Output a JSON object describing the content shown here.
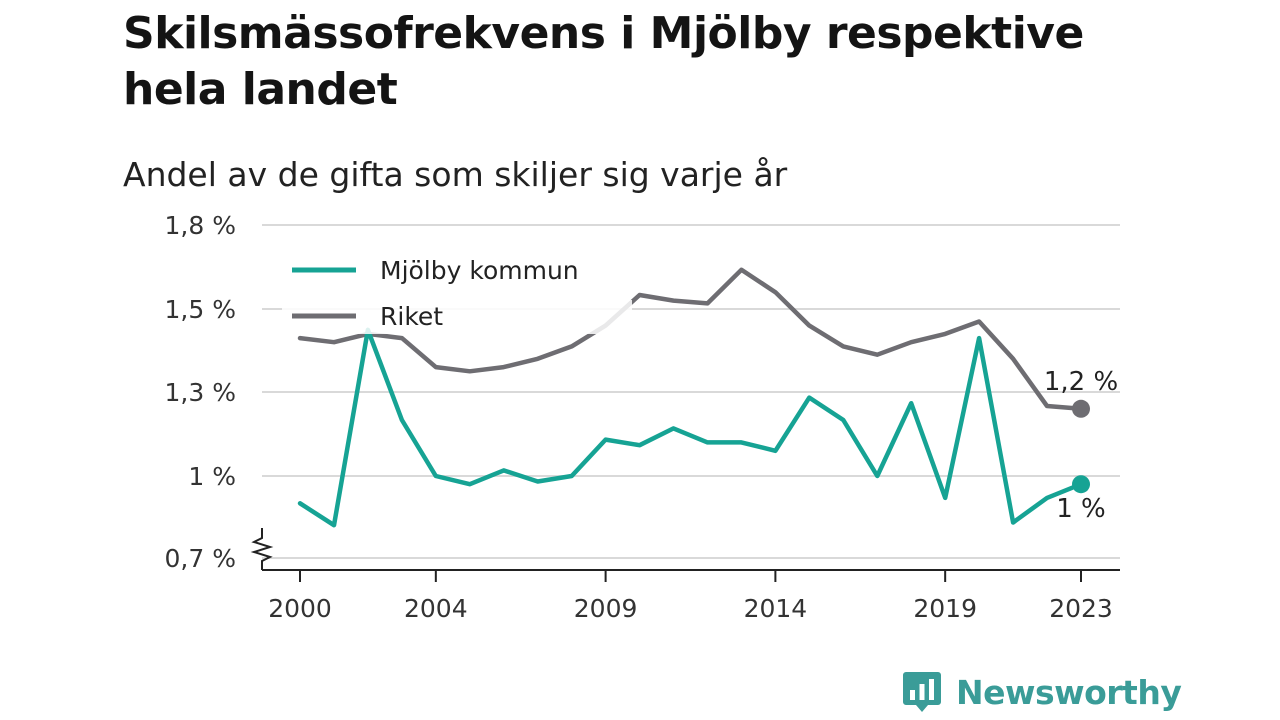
{
  "title": "Skilsmässofrekvens i Mjölby respektive hela landet",
  "subtitle": "Andel av de gifta som skiljer sig varje år",
  "brand": {
    "name": "Newsworthy",
    "color": "#3a9c98",
    "icon": "chart-bubble-icon"
  },
  "chart_data": {
    "type": "line",
    "ylim": [
      0.7,
      1.8
    ],
    "y_ticks": [
      0.7,
      1.0,
      1.3,
      1.5,
      1.8
    ],
    "y_tick_labels": [
      "0,7 %",
      "1 %",
      "1,3 %",
      "1,5 %",
      "1,8 %"
    ],
    "y_axis_break": true,
    "x": [
      2000,
      2001,
      2002,
      2003,
      2004,
      2005,
      2006,
      2007,
      2008,
      2009,
      2010,
      2011,
      2012,
      2013,
      2014,
      2015,
      2016,
      2017,
      2018,
      2019,
      2020,
      2021,
      2022,
      2023
    ],
    "x_ticks": [
      2000,
      2004,
      2009,
      2014,
      2019,
      2023
    ],
    "x_tick_labels": [
      "2000",
      "2004",
      "2009",
      "2014",
      "2019",
      "2023"
    ],
    "grid": "horizontal",
    "legend_position": "top-left",
    "series": [
      {
        "name": "Mjölby kommun",
        "color": "#16a394",
        "values": [
          0.9,
          0.82,
          1.45,
          1.2,
          1.0,
          0.97,
          1.02,
          0.98,
          1.0,
          1.13,
          1.11,
          1.17,
          1.12,
          1.12,
          1.09,
          1.28,
          1.2,
          1.0,
          1.26,
          0.92,
          1.43,
          0.83,
          0.92,
          0.97
        ],
        "end_label": "1 %"
      },
      {
        "name": "Riket",
        "color": "#6e6d72",
        "values": [
          1.43,
          1.42,
          1.44,
          1.43,
          1.36,
          1.35,
          1.36,
          1.38,
          1.41,
          1.46,
          1.55,
          1.53,
          1.52,
          1.64,
          1.56,
          1.46,
          1.41,
          1.39,
          1.42,
          1.44,
          1.47,
          1.38,
          1.25,
          1.24
        ],
        "end_label": "1,2 %"
      }
    ]
  }
}
